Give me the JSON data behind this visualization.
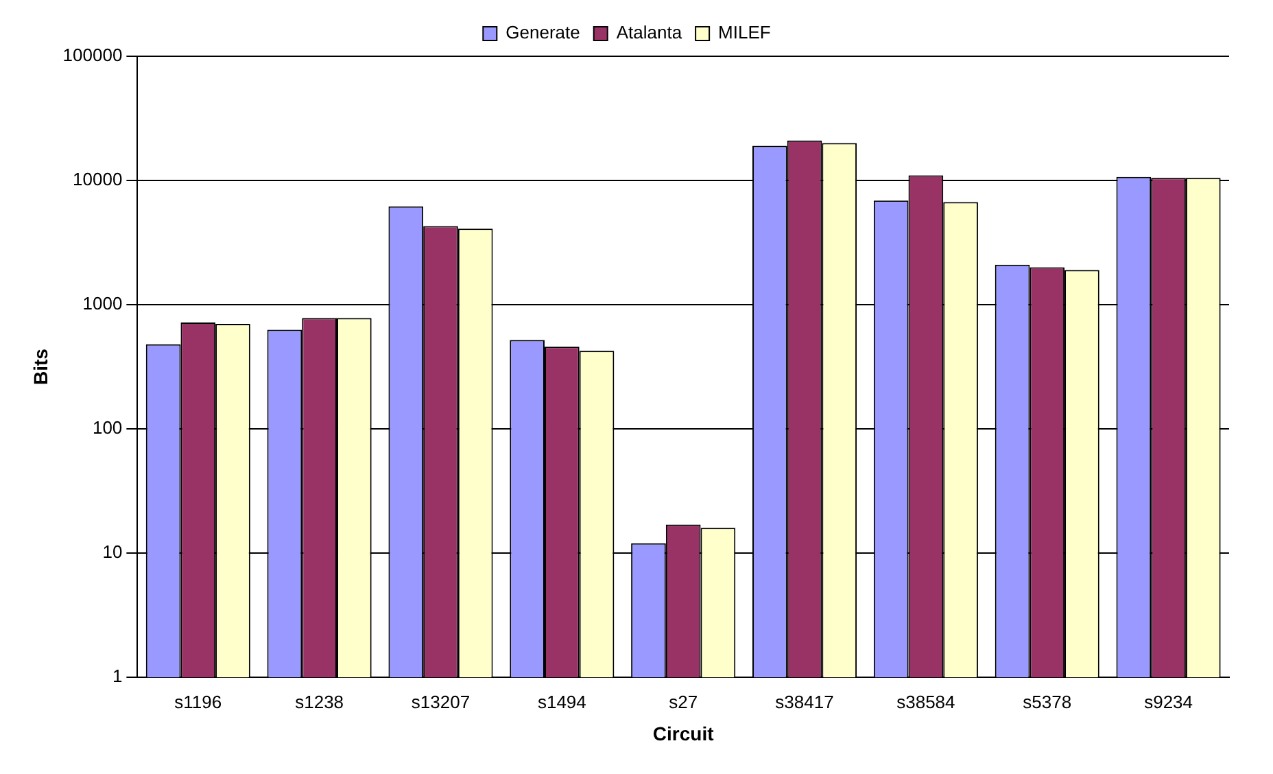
{
  "chart_data": {
    "type": "bar",
    "xlabel": "Circuit",
    "ylabel": "Bits",
    "categories": [
      "s1196",
      "s1238",
      "s13207",
      "s1494",
      "s27",
      "s38417",
      "s38584",
      "s5378",
      "s9234"
    ],
    "series": [
      {
        "name": "Generate",
        "color": "#9999ff",
        "values": [
          480,
          630,
          6200,
          520,
          12,
          19000,
          6900,
          2100,
          10700
        ]
      },
      {
        "name": "Atalanta",
        "color": "#993366",
        "values": [
          720,
          780,
          4300,
          460,
          17,
          21000,
          11000,
          2000,
          10500
        ]
      },
      {
        "name": "MILEF",
        "color": "#ffffcc",
        "values": [
          700,
          780,
          4100,
          425,
          16,
          20000,
          6700,
          1900,
          10500
        ]
      }
    ],
    "log": "y",
    "ylim": [
      1,
      100000
    ],
    "yticks": [
      1,
      10,
      100,
      1000,
      10000,
      100000
    ],
    "grid": "y",
    "legend": "top"
  }
}
